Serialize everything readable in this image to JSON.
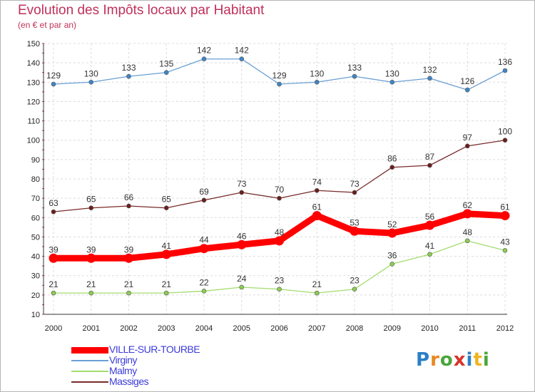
{
  "chart_data": {
    "type": "line",
    "title": "Evolution des Impôts locaux par Habitant",
    "subtitle": "(en € et par an)",
    "x": [
      "2000",
      "2001",
      "2002",
      "2003",
      "2004",
      "2005",
      "2006",
      "2007",
      "2008",
      "2009",
      "2010",
      "2011",
      "2012"
    ],
    "ylim": [
      10,
      150
    ],
    "yticks": [
      10,
      20,
      30,
      40,
      50,
      60,
      70,
      80,
      90,
      100,
      110,
      120,
      130,
      140,
      150
    ],
    "grid": true,
    "series": [
      {
        "name": "Virginy",
        "color": "#6a9fd4",
        "marker": "#3f86c6",
        "width": 1.3,
        "values": [
          129,
          130,
          133,
          135,
          142,
          142,
          129,
          130,
          133,
          130,
          132,
          126,
          136
        ]
      },
      {
        "name": "Massiges",
        "color": "#7a2b2b",
        "marker": "#6b1e1e",
        "width": 1.3,
        "values": [
          63,
          65,
          66,
          65,
          69,
          73,
          70,
          74,
          73,
          86,
          87,
          97,
          100
        ]
      },
      {
        "name": "VILLE-SUR-TOURBE",
        "color": "#ff0000",
        "marker": "#ff0000",
        "width": 9,
        "values": [
          39,
          39,
          39,
          41,
          44,
          46,
          48,
          61,
          53,
          52,
          56,
          62,
          61
        ]
      },
      {
        "name": "Malmy",
        "color": "#a3dc6e",
        "marker": "#8ccd52",
        "width": 1.3,
        "values": [
          21,
          21,
          21,
          21,
          22,
          24,
          23,
          21,
          23,
          36,
          41,
          48,
          43
        ]
      }
    ],
    "legend": [
      "VILLE-SUR-TOURBE",
      "Virginy",
      "Malmy",
      "Massiges"
    ],
    "legend_position": "bottom-left"
  },
  "logo": [
    "P",
    "r",
    "o",
    "x",
    "i",
    "t",
    "i"
  ]
}
